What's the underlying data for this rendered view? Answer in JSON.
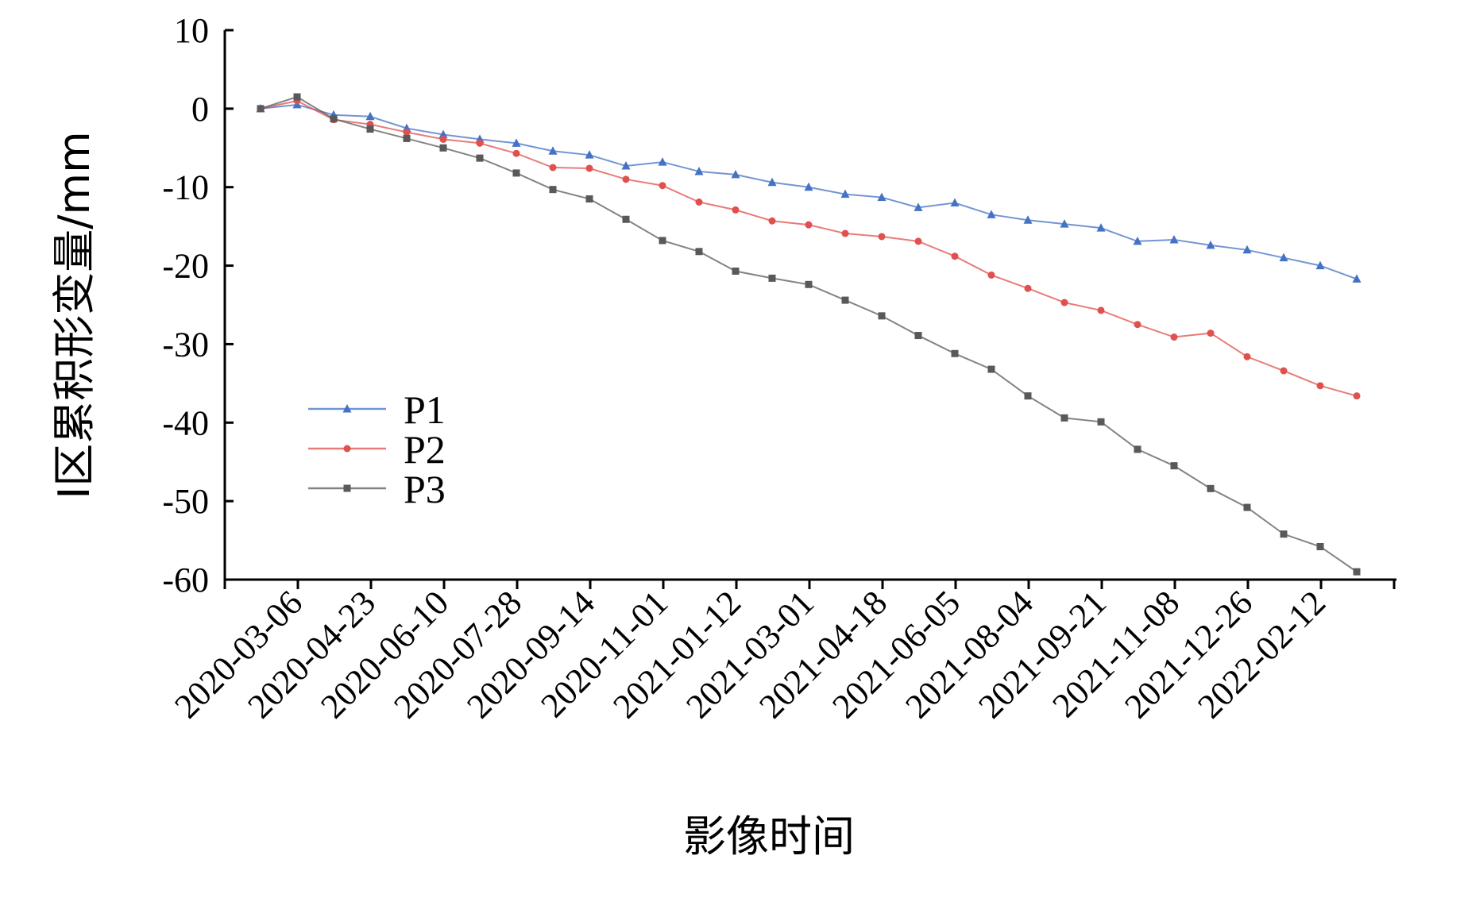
{
  "chart_data": {
    "type": "line",
    "title": "",
    "xlabel": "影像时间",
    "ylabel": "I区累积形变量/mm",
    "ylim": [
      -60,
      10
    ],
    "yticks": [
      10,
      0,
      -10,
      -20,
      -30,
      -40,
      -50,
      -60
    ],
    "ytick_labels": [
      "10",
      "0",
      "-10",
      "-20",
      "-30",
      "-40",
      "-50",
      "-60"
    ],
    "x_tick_labels": [
      "2020-03-06",
      "2020-04-23",
      "2020-06-10",
      "2020-07-28",
      "2020-09-14",
      "2020-11-01",
      "2021-01-12",
      "2021-03-01",
      "2021-04-18",
      "2021-06-05",
      "2021-08-04",
      "2021-09-21",
      "2021-11-08",
      "2021-12-26",
      "2022-02-12"
    ],
    "grid": false,
    "legend_position": "left-center",
    "series": [
      {
        "name": "P1",
        "color": "#4472c4",
        "marker": "triangle",
        "values": [
          0,
          0.5,
          -0.8,
          -1.0,
          -2.5,
          -3.3,
          -3.9,
          -4.4,
          -5.4,
          -5.9,
          -7.3,
          -6.8,
          -8.0,
          -8.4,
          -9.4,
          -10.0,
          -10.9,
          -11.3,
          -12.6,
          -12.0,
          -13.5,
          -14.2,
          -14.7,
          -15.2,
          -16.9,
          -16.7,
          -17.4,
          -18.0,
          -19.0,
          -20.0,
          -21.7
        ]
      },
      {
        "name": "P2",
        "color": "#e0504e",
        "marker": "circle",
        "values": [
          0,
          1.0,
          -1.4,
          -2.0,
          -3.0,
          -3.9,
          -4.4,
          -5.7,
          -7.5,
          -7.6,
          -9.0,
          -9.8,
          -11.9,
          -12.9,
          -14.3,
          -14.8,
          -15.9,
          -16.3,
          -16.9,
          -18.8,
          -21.2,
          -22.9,
          -24.7,
          -25.7,
          -27.5,
          -29.1,
          -28.6,
          -31.6,
          -33.4,
          -35.3,
          -36.6
        ]
      },
      {
        "name": "P3",
        "color": "#595959",
        "marker": "square",
        "values": [
          0,
          1.5,
          -1.3,
          -2.6,
          -3.8,
          -5.0,
          -6.3,
          -8.2,
          -10.3,
          -11.5,
          -14.1,
          -16.8,
          -18.2,
          -20.7,
          -21.6,
          -22.4,
          -24.4,
          -26.4,
          -28.9,
          -31.2,
          -33.2,
          -36.6,
          -39.4,
          -39.9,
          -43.4,
          -45.5,
          -48.4,
          -50.8,
          -54.2,
          -55.8,
          -59.0
        ]
      }
    ]
  }
}
